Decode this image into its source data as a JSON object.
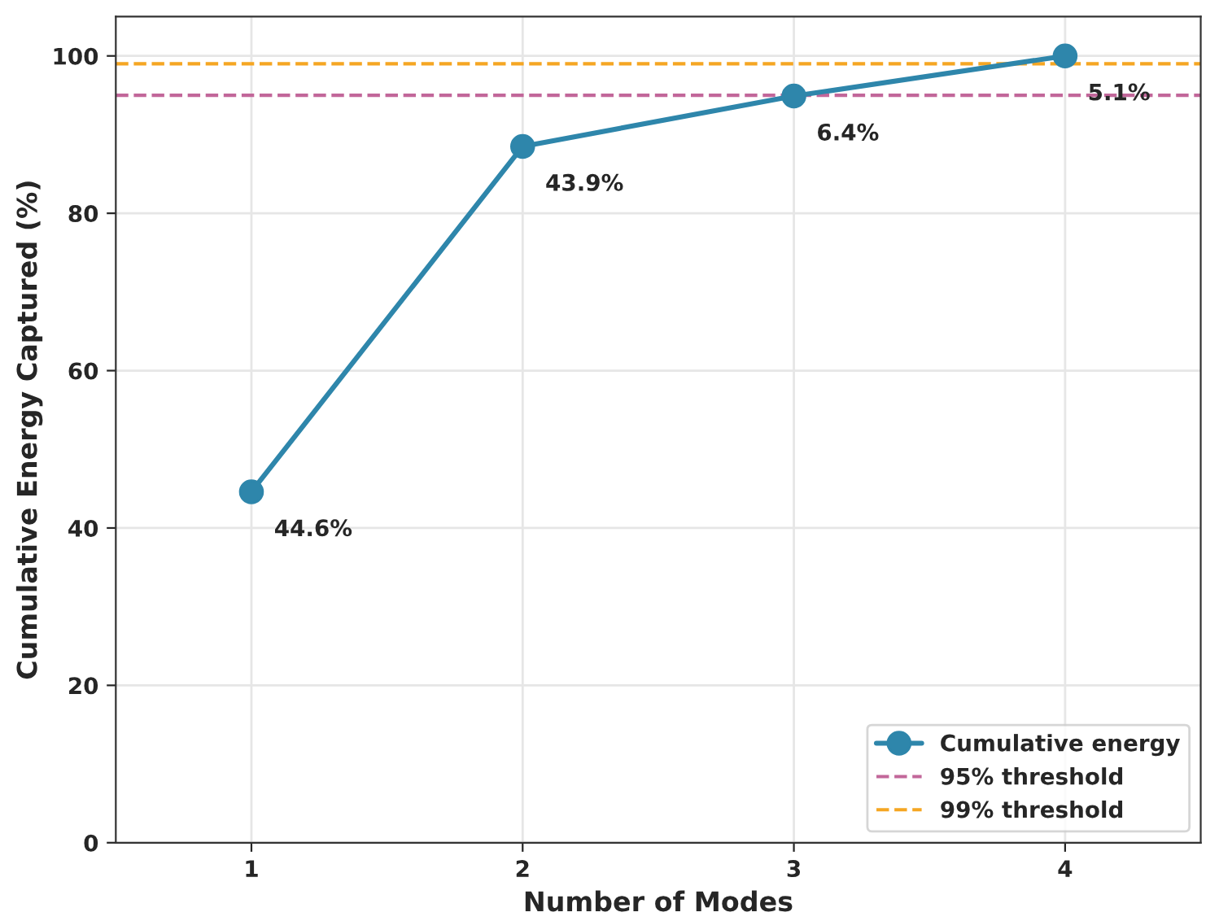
{
  "chart_data": {
    "type": "line",
    "xlabel": "Number of Modes",
    "ylabel": "Cumulative Energy Captured (%)",
    "x": [
      1,
      2,
      3,
      4
    ],
    "series": [
      {
        "name": "Cumulative energy",
        "color": "#2e86ab",
        "values": [
          44.6,
          88.5,
          94.9,
          100
        ]
      }
    ],
    "xlim": [
      0.5,
      4.5
    ],
    "xticks": [
      1,
      2,
      3,
      4
    ],
    "ylim": [
      0,
      105
    ],
    "yticks": [
      0,
      20,
      40,
      60,
      80,
      100
    ],
    "ref_lines": [
      {
        "axis": "y",
        "value": 95,
        "label": "95% threshold",
        "color": "#c2679a",
        "line_style": "dashed"
      },
      {
        "axis": "y",
        "value": 99,
        "label": "99% threshold",
        "color": "#f5a623",
        "line_style": "dashed"
      }
    ],
    "annotations": [
      {
        "text": "44.6%",
        "x": 1,
        "y": 44.6
      },
      {
        "text": "43.9%",
        "x": 2,
        "y": 88.5
      },
      {
        "text": "6.4%",
        "x": 3,
        "y": 94.9
      },
      {
        "text": "5.1%",
        "x": 4,
        "y": 100
      }
    ],
    "grid": true,
    "legend": "bottom right",
    "marker": "circle",
    "line_style": "solid"
  }
}
